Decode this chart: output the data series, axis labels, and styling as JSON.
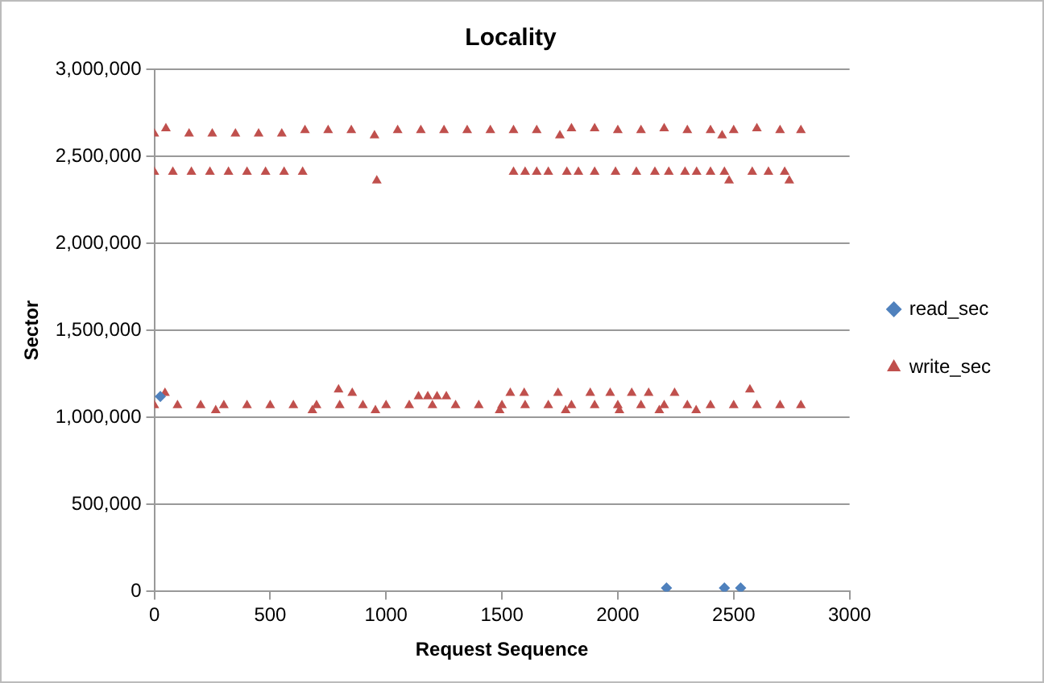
{
  "chart_data": {
    "type": "scatter",
    "title": "Locality",
    "xlabel": "Request Sequence",
    "ylabel": "Sector",
    "xlim": [
      0,
      3000
    ],
    "xticks": [
      0,
      500,
      1000,
      1500,
      2000,
      2500,
      3000
    ],
    "ylim": [
      0,
      3000000
    ],
    "yticks": [
      {
        "value": 0,
        "label": "0"
      },
      {
        "value": 500000,
        "label": "500,000"
      },
      {
        "value": 1000000,
        "label": "1,000,000"
      },
      {
        "value": 1500000,
        "label": "1,500,000"
      },
      {
        "value": 2000000,
        "label": "2,000,000"
      },
      {
        "value": 2500000,
        "label": "2,500,000"
      },
      {
        "value": 3000000,
        "label": "3,000,000"
      }
    ],
    "grid": "y",
    "legend": "right",
    "series": [
      {
        "name": "read_sec",
        "color": "#4f81bd",
        "marker": "diamond",
        "x": [
          26,
          2210,
          2460,
          2530
        ],
        "values": [
          1120000,
          20000,
          20000,
          20000
        ]
      },
      {
        "name": "write_sec",
        "color": "#c0504d",
        "marker": "triangle",
        "x": [
          0,
          50,
          150,
          250,
          350,
          450,
          550,
          650,
          750,
          850,
          950,
          1050,
          1150,
          1250,
          1350,
          1450,
          1550,
          1650,
          1750,
          1800,
          1900,
          2000,
          2100,
          2200,
          2300,
          2400,
          2450,
          2500,
          2600,
          2700,
          2790,
          0,
          80,
          160,
          240,
          320,
          400,
          480,
          560,
          640,
          960,
          1550,
          1600,
          1650,
          1700,
          1780,
          1830,
          1900,
          1990,
          2080,
          2160,
          2220,
          2290,
          2340,
          2400,
          2460,
          2480,
          2580,
          2650,
          2720,
          2740,
          0,
          100,
          200,
          300,
          400,
          500,
          600,
          700,
          800,
          900,
          1000,
          1100,
          1200,
          1300,
          1400,
          1500,
          1600,
          1700,
          1800,
          1900,
          2000,
          2100,
          2200,
          2300,
          2400,
          2500,
          2600,
          2700,
          2790,
          46,
          795,
          854,
          1536,
          1596,
          1742,
          1881,
          1967,
          2060,
          2133,
          2245,
          2570,
          1140,
          1180,
          1220,
          1260,
          265,
          682,
          954,
          1490,
          1775,
          2007,
          2179,
          2338
        ],
        "values": [
          2630000,
          2660000,
          2630000,
          2630000,
          2630000,
          2630000,
          2630000,
          2650000,
          2650000,
          2650000,
          2620000,
          2650000,
          2650000,
          2650000,
          2650000,
          2650000,
          2650000,
          2650000,
          2620000,
          2660000,
          2660000,
          2650000,
          2650000,
          2660000,
          2650000,
          2650000,
          2620000,
          2650000,
          2660000,
          2650000,
          2650000,
          2410000,
          2410000,
          2410000,
          2410000,
          2410000,
          2410000,
          2410000,
          2410000,
          2410000,
          2360000,
          2410000,
          2410000,
          2410000,
          2410000,
          2410000,
          2410000,
          2410000,
          2410000,
          2410000,
          2410000,
          2410000,
          2410000,
          2410000,
          2410000,
          2410000,
          2360000,
          2410000,
          2410000,
          2410000,
          2360000,
          1070000,
          1070000,
          1070000,
          1070000,
          1070000,
          1070000,
          1070000,
          1070000,
          1070000,
          1070000,
          1070000,
          1070000,
          1070000,
          1070000,
          1070000,
          1070000,
          1070000,
          1070000,
          1070000,
          1070000,
          1070000,
          1070000,
          1070000,
          1070000,
          1070000,
          1070000,
          1070000,
          1070000,
          1070000,
          1140000,
          1160000,
          1140000,
          1140000,
          1140000,
          1140000,
          1140000,
          1140000,
          1140000,
          1140000,
          1140000,
          1160000,
          1120000,
          1120000,
          1120000,
          1120000,
          1040000,
          1040000,
          1040000,
          1040000,
          1040000,
          1040000,
          1040000,
          1040000
        ]
      }
    ]
  }
}
